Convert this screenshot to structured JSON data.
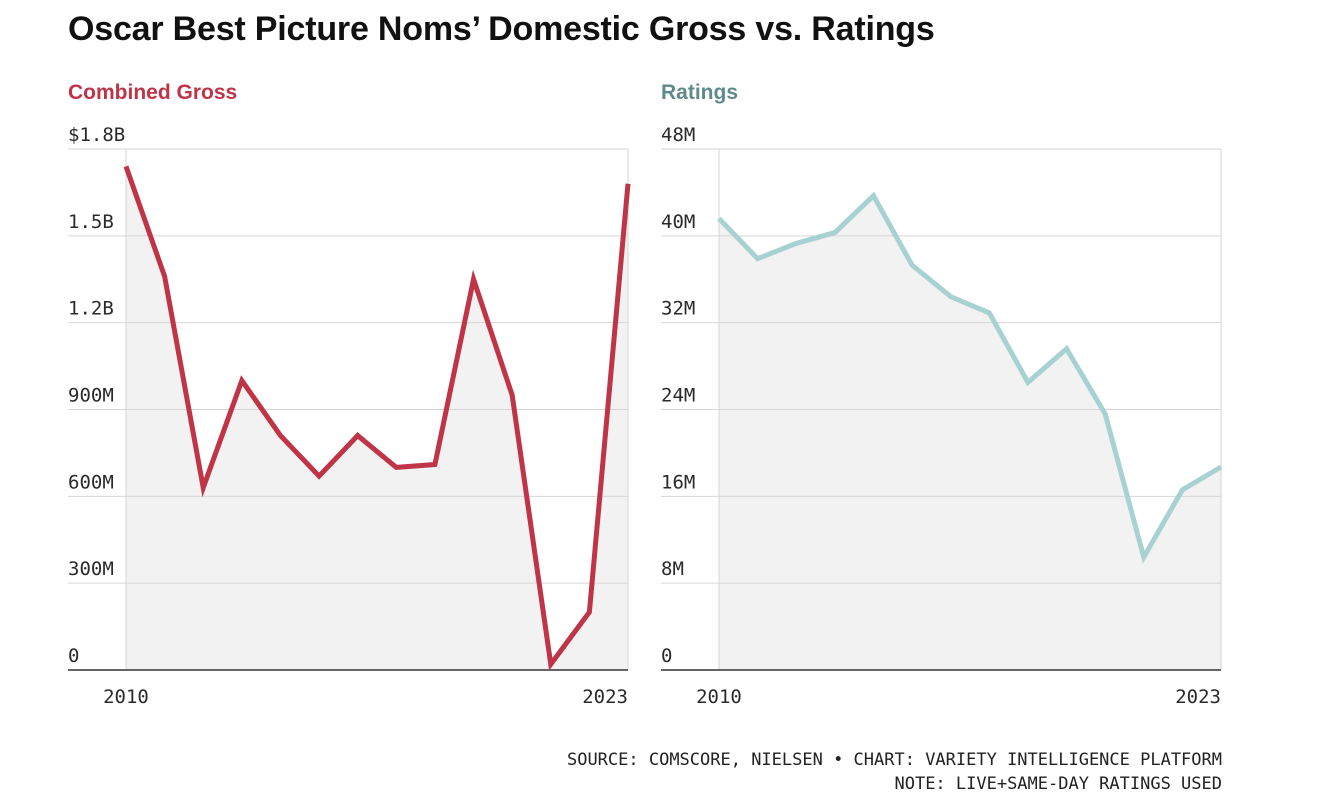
{
  "title": "Oscar Best Picture Noms’ Domestic Gross vs. Ratings",
  "colors": {
    "gross": "#bf3447",
    "ratings": "#a8d1d1",
    "ratings_label": "#5f8a8b",
    "area_fill": "#f2f2f2",
    "grid": "#d6d6d6",
    "axis": "#333333"
  },
  "chart_data": [
    {
      "type": "area",
      "subtitle": "Combined Gross",
      "x": [
        2010,
        2011,
        2012,
        2013,
        2014,
        2015,
        2016,
        2017,
        2018,
        2019,
        2020,
        2021,
        2022,
        2023
      ],
      "series": [
        {
          "values": [
            1740000000,
            1360000000,
            630000000,
            1000000000,
            810000000,
            670000000,
            810000000,
            700000000,
            710000000,
            1350000000,
            950000000,
            20000000,
            200000000,
            1680000000
          ]
        }
      ],
      "ylim": [
        0,
        1800000000
      ],
      "yticks": [
        0,
        300000000,
        600000000,
        900000000,
        1200000000,
        1500000000,
        1800000000
      ],
      "ytick_labels": [
        "0",
        "300M",
        "600M",
        "900M",
        "1.2B",
        "1.5B",
        "$1.8B"
      ],
      "xtick_labels": [
        "2010",
        "2023"
      ],
      "grid": true
    },
    {
      "type": "area",
      "subtitle": "Ratings",
      "x": [
        2010,
        2011,
        2012,
        2013,
        2014,
        2015,
        2016,
        2017,
        2018,
        2019,
        2020,
        2021,
        2022,
        2023
      ],
      "series": [
        {
          "values": [
            41.6,
            37.9,
            39.3,
            40.3,
            43.7,
            37.3,
            34.4,
            32.9,
            26.5,
            29.6,
            23.6,
            10.4,
            16.6,
            18.7
          ]
        }
      ],
      "ylim": [
        0,
        48
      ],
      "yticks": [
        0,
        8,
        16,
        24,
        32,
        40,
        48
      ],
      "ytick_labels": [
        "0",
        "8M",
        "16M",
        "24M",
        "32M",
        "40M",
        "48M"
      ],
      "xtick_labels": [
        "2010",
        "2023"
      ],
      "grid": true
    }
  ],
  "footer": {
    "source": "SOURCE: COMSCORE, NIELSEN • CHART: VARIETY INTELLIGENCE PLATFORM",
    "note": "NOTE: LIVE+SAME-DAY RATINGS USED"
  }
}
